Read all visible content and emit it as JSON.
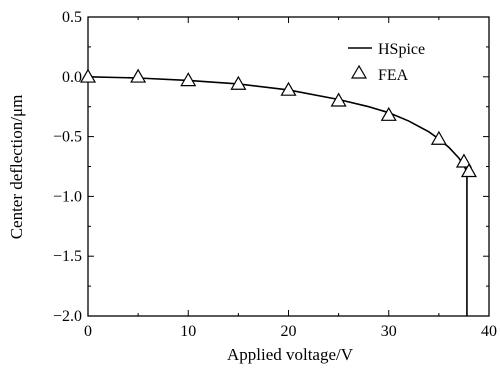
{
  "chart_data": {
    "type": "line",
    "xlabel": "Applied voltage/V",
    "ylabel": "Center deflection/μm",
    "xlim": [
      0,
      40
    ],
    "ylim": [
      -2.0,
      0.5
    ],
    "x_ticks": [
      "0",
      "10",
      "20",
      "30",
      "40"
    ],
    "y_ticks": [
      "0.5",
      "0.0",
      "−0.5",
      "−1.0",
      "−1.5",
      "−2.0"
    ],
    "grid": false,
    "legend_position": "top-right",
    "series": [
      {
        "name": "HSpice",
        "style": "line",
        "color": "#000000",
        "x": [
          0,
          5,
          10,
          15,
          20,
          25,
          28,
          30,
          32,
          34,
          35,
          36,
          37,
          37.5,
          37.7,
          37.75,
          37.8,
          37.8
        ],
        "y": [
          0.0,
          -0.01,
          -0.03,
          -0.06,
          -0.11,
          -0.19,
          -0.25,
          -0.3,
          -0.37,
          -0.46,
          -0.52,
          -0.59,
          -0.68,
          -0.74,
          -0.78,
          -0.8,
          -0.82,
          -2.0
        ]
      },
      {
        "name": "FEA",
        "style": "triangle-marker",
        "color": "#000000",
        "x": [
          0,
          5,
          10,
          15,
          20,
          25,
          30,
          35,
          37.5,
          38
        ],
        "y": [
          0.0,
          0.0,
          -0.03,
          -0.06,
          -0.11,
          -0.2,
          -0.32,
          -0.52,
          -0.71,
          -0.79
        ]
      }
    ]
  }
}
